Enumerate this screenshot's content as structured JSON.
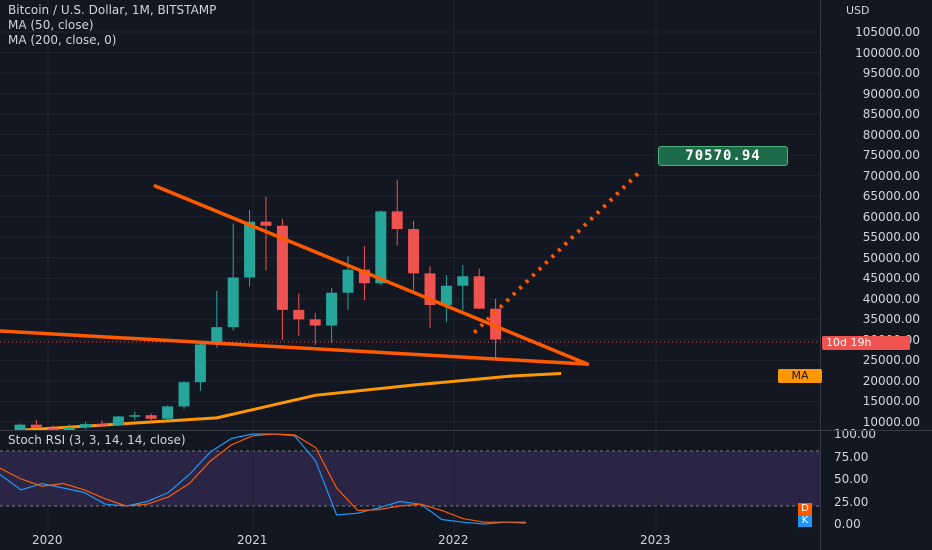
{
  "header": {
    "symbol": "Bitcoin / U.S. Dollar, 1M, BITSTAMP",
    "ma1": "MA (50, close)",
    "ma2": "MA (200, close, 0)"
  },
  "rsi": {
    "title": "Stoch RSI (3, 3, 14, 14, close)"
  },
  "price_axis": {
    "currency": "USD",
    "countdown": "10d 19h",
    "ma_tag": "MA",
    "callout": "70570.94",
    "rsi_ticks": [
      "100.00",
      "75.00",
      "50.00",
      "25.00",
      "0.00"
    ],
    "d_label": "D",
    "k_label": "K"
  },
  "colors": {
    "up": "#26a69a",
    "down": "#ef5350",
    "ma": "#ff9800",
    "trendline": "#ff5a00",
    "rsi_k": "#2196f3",
    "rsi_d": "#ff5a00",
    "rsi_band": "#7e57c2"
  },
  "chart_data": [
    {
      "type": "candlestick",
      "title": "Bitcoin / U.S. Dollar, 1M, BITSTAMP",
      "ylabel": "USD",
      "ylim": [
        8000,
        112000
      ],
      "yticks": [
        "10000.00",
        "15000.00",
        "20000.00",
        "25000.00",
        "30000.00",
        "35000.00",
        "40000.00",
        "45000.00",
        "50000.00",
        "55000.00",
        "60000.00",
        "65000.00",
        "70000.00",
        "75000.00",
        "80000.00",
        "85000.00",
        "90000.00",
        "95000.00",
        "100000.00",
        "105000.00"
      ],
      "xticks": [
        "2020",
        "2021",
        "2022",
        "2023"
      ],
      "candles": [
        {
          "o": 7200,
          "h": 9600,
          "l": 6500,
          "c": 9350
        },
        {
          "o": 9350,
          "h": 10500,
          "l": 8600,
          "c": 8550
        },
        {
          "o": 8550,
          "h": 9200,
          "l": 4000,
          "c": 6450
        },
        {
          "o": 6450,
          "h": 9400,
          "l": 6200,
          "c": 8650
        },
        {
          "o": 8650,
          "h": 10100,
          "l": 8200,
          "c": 9500
        },
        {
          "o": 9500,
          "h": 10400,
          "l": 8900,
          "c": 9150
        },
        {
          "o": 9150,
          "h": 11500,
          "l": 9000,
          "c": 11350
        },
        {
          "o": 11350,
          "h": 12500,
          "l": 10500,
          "c": 11650
        },
        {
          "o": 11650,
          "h": 12100,
          "l": 10000,
          "c": 10800
        },
        {
          "o": 10800,
          "h": 14000,
          "l": 10400,
          "c": 13800
        },
        {
          "o": 13800,
          "h": 19900,
          "l": 13200,
          "c": 19700
        },
        {
          "o": 19700,
          "h": 29300,
          "l": 17600,
          "c": 28900
        },
        {
          "o": 28900,
          "h": 41900,
          "l": 28100,
          "c": 33100
        },
        {
          "o": 33100,
          "h": 58300,
          "l": 32300,
          "c": 45200
        },
        {
          "o": 45200,
          "h": 61700,
          "l": 43000,
          "c": 58800
        },
        {
          "o": 58800,
          "h": 64900,
          "l": 47000,
          "c": 57800
        },
        {
          "o": 57800,
          "h": 59500,
          "l": 30000,
          "c": 37300
        },
        {
          "o": 37300,
          "h": 41300,
          "l": 31000,
          "c": 35000
        },
        {
          "o": 35000,
          "h": 36600,
          "l": 28800,
          "c": 33500
        },
        {
          "o": 33500,
          "h": 42600,
          "l": 29300,
          "c": 41500
        },
        {
          "o": 41500,
          "h": 50400,
          "l": 37300,
          "c": 47100
        },
        {
          "o": 47100,
          "h": 52900,
          "l": 39600,
          "c": 43800
        },
        {
          "o": 43800,
          "h": 61500,
          "l": 43300,
          "c": 61300
        },
        {
          "o": 61300,
          "h": 69000,
          "l": 53000,
          "c": 57000
        },
        {
          "o": 57000,
          "h": 59000,
          "l": 42000,
          "c": 46200
        },
        {
          "o": 46200,
          "h": 47900,
          "l": 32900,
          "c": 38500
        },
        {
          "o": 38500,
          "h": 45800,
          "l": 34300,
          "c": 43200
        },
        {
          "o": 43200,
          "h": 48200,
          "l": 37200,
          "c": 45500
        },
        {
          "o": 45500,
          "h": 47400,
          "l": 37700,
          "c": 37600
        },
        {
          "o": 37600,
          "h": 40000,
          "l": 25600,
          "c": 30100
        }
      ],
      "ma200": [
        [
          0,
          8000
        ],
        [
          12,
          11000
        ],
        [
          18,
          16500
        ],
        [
          24,
          19000
        ],
        [
          30,
          21200
        ],
        [
          33,
          21800
        ]
      ],
      "trendlines": {
        "upper": [
          [
            8.25,
            67500
          ],
          [
            34.6,
            24100
          ]
        ],
        "lower": [
          [
            -2.7,
            32500
          ],
          [
            34.6,
            24100
          ]
        ],
        "projection": [
          [
            27.7,
            31800
          ],
          [
            37.7,
            70570.94
          ]
        ]
      }
    },
    {
      "type": "line",
      "title": "Stoch RSI (3, 3, 14, 14, close)",
      "ylim": [
        0,
        100
      ],
      "band": [
        20,
        80
      ],
      "series": [
        {
          "name": "K",
          "values": [
            55,
            38,
            45,
            40,
            35,
            22,
            20,
            25,
            35,
            55,
            80,
            95,
            100,
            100,
            98,
            70,
            10,
            12,
            18,
            25,
            22,
            5,
            2,
            0,
            2,
            1
          ]
        },
        {
          "name": "D",
          "values": [
            62,
            50,
            42,
            45,
            38,
            28,
            20,
            22,
            30,
            45,
            70,
            88,
            98,
            100,
            99,
            85,
            40,
            15,
            16,
            20,
            22,
            15,
            6,
            2,
            2,
            2
          ]
        }
      ]
    }
  ]
}
